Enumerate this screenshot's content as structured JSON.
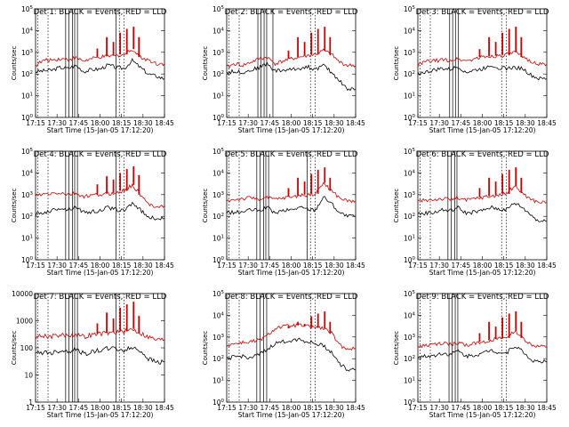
{
  "figure": {
    "x_labels": [
      "17:15",
      "17:30",
      "17:45",
      "18:00",
      "18:15",
      "18:30",
      "18:45"
    ],
    "xlabel": "Start Time (15-Jan-05 17:12:20)",
    "ylabel": "Counts/sec",
    "colors": {
      "events": "#000000",
      "lld": "#d00000"
    }
  },
  "chart_data": [
    {
      "type": "line",
      "title": "Det 1: BLACK = Events, RED = LLD",
      "ytick_style": "exp",
      "yticks": [
        "10^0",
        "10^1",
        "10^2",
        "10^3",
        "10^4",
        "10^5"
      ],
      "ylim": [
        1,
        100000
      ],
      "x_minutes": [
        0,
        6,
        12,
        18,
        24,
        30,
        36,
        42,
        48,
        54,
        60,
        66,
        72,
        78,
        84,
        90,
        96
      ],
      "series": [
        {
          "name": "Events",
          "color": "#000000",
          "values": [
            130,
            140,
            150,
            200,
            180,
            250,
            130,
            160,
            170,
            260,
            200,
            180,
            420,
            200,
            100,
            80,
            60
          ]
        },
        {
          "name": "LLD",
          "color": "#d00000",
          "values": [
            250,
            420,
            450,
            500,
            480,
            550,
            400,
            500,
            600,
            650,
            700,
            800,
            1400,
            600,
            450,
            300,
            300
          ]
        }
      ],
      "lld_peaks": [
        1500,
        5000,
        3000,
        8000,
        12000,
        15000,
        5000
      ],
      "vlines_solid": [
        1.4,
        1.55,
        1.72,
        1.82,
        1.95,
        3.75
      ],
      "vlines_dotted": [
        0.1,
        0.58,
        3.9,
        4.12
      ]
    },
    {
      "type": "line",
      "title": "Det 2: BLACK = Events, RED = LLD",
      "ytick_style": "exp",
      "yticks": [
        "10^0",
        "10^1",
        "10^2",
        "10^3",
        "10^4",
        "10^5"
      ],
      "ylim": [
        1,
        100000
      ],
      "x_minutes": [
        0,
        6,
        12,
        18,
        24,
        30,
        36,
        42,
        48,
        54,
        60,
        66,
        72,
        78,
        84,
        90,
        96
      ],
      "series": [
        {
          "name": "Events",
          "color": "#000000",
          "values": [
            120,
            130,
            120,
            150,
            200,
            300,
            140,
            150,
            160,
            180,
            220,
            160,
            250,
            120,
            50,
            20,
            20
          ]
        },
        {
          "name": "LLD",
          "color": "#d00000",
          "values": [
            200,
            300,
            250,
            350,
            500,
            600,
            300,
            400,
            500,
            600,
            700,
            800,
            1200,
            800,
            350,
            250,
            250
          ]
        }
      ],
      "lld_peaks": [
        1200,
        5000,
        3000,
        8000,
        12000,
        15000,
        5000
      ],
      "vlines_solid": [
        1.45,
        1.6,
        1.74,
        1.86,
        2.15
      ],
      "vlines_dotted": [
        0.1,
        0.58,
        3.9,
        4.12
      ]
    },
    {
      "type": "line",
      "title": "Det 3: BLACK = Events, RED = LLD",
      "ytick_style": "exp",
      "yticks": [
        "10^0",
        "10^1",
        "10^2",
        "10^3",
        "10^4",
        "10^5"
      ],
      "ylim": [
        1,
        100000
      ],
      "x_minutes": [
        0,
        6,
        12,
        18,
        24,
        30,
        36,
        42,
        48,
        54,
        60,
        66,
        72,
        78,
        84,
        90,
        96
      ],
      "series": [
        {
          "name": "Events",
          "color": "#000000",
          "values": [
            110,
            120,
            150,
            180,
            160,
            220,
            120,
            150,
            170,
            260,
            200,
            180,
            200,
            180,
            90,
            60,
            60
          ]
        },
        {
          "name": "LLD",
          "color": "#d00000",
          "values": [
            250,
            380,
            400,
            450,
            430,
            500,
            400,
            500,
            600,
            650,
            700,
            750,
            1000,
            600,
            400,
            280,
            280
          ]
        }
      ],
      "lld_peaks": [
        1400,
        5000,
        3000,
        8000,
        12000,
        15000,
        5000
      ],
      "vlines_solid": [
        1.48,
        1.62,
        1.75,
        1.88
      ],
      "vlines_dotted": [
        0.1,
        0.58,
        3.9,
        4.12
      ]
    },
    {
      "type": "line",
      "title": "Det 4: BLACK = Events, RED = LLD",
      "ytick_style": "exp",
      "yticks": [
        "10^0",
        "10^1",
        "10^2",
        "10^3",
        "10^4",
        "10^5"
      ],
      "ylim": [
        1,
        100000
      ],
      "x_minutes": [
        0,
        6,
        12,
        18,
        24,
        30,
        36,
        42,
        48,
        54,
        60,
        66,
        72,
        78,
        84,
        90,
        96
      ],
      "series": [
        {
          "name": "Events",
          "color": "#000000",
          "values": [
            120,
            150,
            180,
            250,
            200,
            280,
            150,
            160,
            180,
            260,
            200,
            180,
            420,
            200,
            90,
            80,
            80
          ]
        },
        {
          "name": "LLD",
          "color": "#d00000",
          "values": [
            900,
            1000,
            1100,
            1200,
            1000,
            1100,
            800,
            900,
            1000,
            1100,
            1200,
            1500,
            2800,
            1000,
            350,
            300,
            300
          ]
        }
      ],
      "lld_peaks": [
        3000,
        7000,
        5000,
        10000,
        15000,
        20000,
        8000
      ],
      "vlines_solid": [
        1.4,
        1.55,
        1.72,
        1.82,
        1.95,
        3.75
      ],
      "vlines_dotted": [
        0.1,
        0.58,
        3.9,
        4.12
      ]
    },
    {
      "type": "line",
      "title": "Det 5: BLACK = Events, RED = LLD",
      "ytick_style": "exp",
      "yticks": [
        "10^0",
        "10^1",
        "10^2",
        "10^3",
        "10^4",
        "10^5"
      ],
      "ylim": [
        1,
        100000
      ],
      "x_minutes": [
        0,
        6,
        12,
        18,
        24,
        30,
        36,
        42,
        48,
        54,
        60,
        66,
        72,
        78,
        84,
        90,
        96
      ],
      "series": [
        {
          "name": "Events",
          "color": "#000000",
          "values": [
            150,
            150,
            160,
            200,
            180,
            260,
            140,
            180,
            200,
            260,
            220,
            200,
            800,
            400,
            150,
            100,
            100
          ]
        },
        {
          "name": "LLD",
          "color": "#d00000",
          "values": [
            500,
            600,
            650,
            700,
            650,
            700,
            600,
            700,
            800,
            900,
            1000,
            1100,
            3500,
            1500,
            700,
            500,
            500
          ]
        }
      ],
      "lld_peaks": [
        2000,
        6000,
        4000,
        9000,
        14000,
        18000,
        6000
      ],
      "vlines_solid": [
        1.4,
        1.55,
        1.72,
        1.82,
        1.95,
        3.75
      ],
      "vlines_dotted": [
        0.1,
        0.58,
        3.9,
        4.12
      ]
    },
    {
      "type": "line",
      "title": "Det 6: BLACK = Events, RED = LLD",
      "ytick_style": "exp",
      "yticks": [
        "10^0",
        "10^1",
        "10^2",
        "10^3",
        "10^4",
        "10^5"
      ],
      "ylim": [
        1,
        100000
      ],
      "x_minutes": [
        0,
        6,
        12,
        18,
        24,
        30,
        36,
        42,
        48,
        54,
        60,
        66,
        72,
        78,
        84,
        90,
        96
      ],
      "series": [
        {
          "name": "Events",
          "color": "#000000",
          "values": [
            130,
            140,
            150,
            200,
            180,
            250,
            140,
            160,
            180,
            260,
            220,
            200,
            420,
            250,
            120,
            60,
            60
          ]
        },
        {
          "name": "LLD",
          "color": "#d00000",
          "values": [
            500,
            550,
            600,
            650,
            600,
            700,
            550,
            650,
            750,
            850,
            950,
            1100,
            2500,
            1200,
            600,
            450,
            450
          ]
        }
      ],
      "lld_peaks": [
        2000,
        6000,
        4000,
        9000,
        14000,
        18000,
        6000
      ],
      "vlines_solid": [
        1.4,
        1.55,
        1.72,
        1.82
      ],
      "vlines_dotted": [
        0.1,
        0.58,
        3.9,
        4.12
      ]
    },
    {
      "type": "line",
      "title": "Det 7: BLACK = Events, RED = LLD",
      "ytick_style": "plain",
      "yticks": [
        "1",
        "10",
        "100",
        "1000",
        "10000"
      ],
      "ylim": [
        1,
        10000
      ],
      "x_minutes": [
        0,
        6,
        12,
        18,
        24,
        30,
        36,
        42,
        48,
        54,
        60,
        66,
        72,
        78,
        84,
        90,
        96
      ],
      "series": [
        {
          "name": "Events",
          "color": "#000000",
          "values": [
            60,
            70,
            65,
            80,
            75,
            90,
            60,
            70,
            80,
            100,
            90,
            80,
            100,
            80,
            40,
            30,
            30
          ]
        },
        {
          "name": "LLD",
          "color": "#d00000",
          "values": [
            250,
            280,
            260,
            300,
            280,
            320,
            250,
            300,
            330,
            350,
            380,
            400,
            500,
            350,
            250,
            200,
            200
          ]
        }
      ],
      "lld_peaks": [
        800,
        2000,
        1200,
        3000,
        4000,
        5000,
        1500
      ],
      "vlines_solid": [
        1.4,
        1.55,
        1.72,
        1.82,
        1.95,
        3.75
      ],
      "vlines_dotted": [
        0.1,
        0.58,
        3.9,
        4.12
      ]
    },
    {
      "type": "line",
      "title": "Det 8: BLACK = Events, RED = LLD",
      "ytick_style": "exp",
      "yticks": [
        "10^0",
        "10^1",
        "10^2",
        "10^3",
        "10^4",
        "10^5"
      ],
      "ylim": [
        1,
        100000
      ],
      "x_minutes": [
        0,
        6,
        12,
        18,
        24,
        30,
        36,
        42,
        48,
        54,
        60,
        66,
        72,
        78,
        84,
        90,
        96
      ],
      "series": [
        {
          "name": "Events",
          "color": "#000000",
          "values": [
            100,
            120,
            130,
            110,
            150,
            250,
            500,
            600,
            700,
            800,
            600,
            500,
            400,
            200,
            60,
            30,
            30
          ]
        },
        {
          "name": "LLD",
          "color": "#d00000",
          "values": [
            400,
            500,
            550,
            600,
            700,
            1100,
            2500,
            3000,
            3200,
            3500,
            3000,
            2800,
            2500,
            1500,
            400,
            300,
            300
          ]
        }
      ],
      "lld_peaks": [
        2500,
        5000,
        4000,
        9000,
        12000,
        15000,
        5000
      ],
      "vlines_solid": [
        1.4,
        1.55,
        1.72,
        1.86
      ],
      "vlines_dotted": [
        0.1,
        0.58,
        3.9,
        4.12
      ]
    },
    {
      "type": "line",
      "title": "Det 9: BLACK = Events, RED = LLD",
      "ytick_style": "exp",
      "yticks": [
        "10^0",
        "10^1",
        "10^2",
        "10^3",
        "10^4",
        "10^5"
      ],
      "ylim": [
        1,
        100000
      ],
      "x_minutes": [
        0,
        6,
        12,
        18,
        24,
        30,
        36,
        42,
        48,
        54,
        60,
        66,
        72,
        78,
        84,
        90,
        96
      ],
      "series": [
        {
          "name": "Events",
          "color": "#000000",
          "values": [
            120,
            130,
            140,
            180,
            160,
            230,
            130,
            150,
            170,
            260,
            200,
            180,
            400,
            220,
            90,
            70,
            70
          ]
        },
        {
          "name": "LLD",
          "color": "#d00000",
          "values": [
            350,
            400,
            450,
            500,
            450,
            550,
            400,
            500,
            600,
            700,
            800,
            900,
            2000,
            900,
            450,
            350,
            350
          ]
        }
      ],
      "lld_peaks": [
        1500,
        5000,
        3000,
        8000,
        12000,
        15000,
        5000
      ],
      "vlines_solid": [
        1.45,
        1.6,
        1.74,
        1.86
      ],
      "vlines_dotted": [
        0.1,
        0.58,
        3.9,
        4.12
      ]
    }
  ]
}
